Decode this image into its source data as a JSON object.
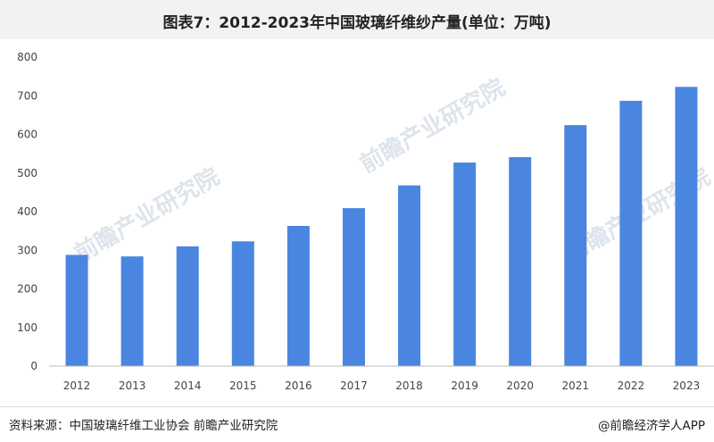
{
  "title": "图表7：2012-2023年中国玻璃纤维纱产量(单位：万吨)",
  "source": "资料来源：中国玻璃纤维工业协会 前瞻产业研究院",
  "brand": "@前瞻经济学人APP",
  "watermark": "前瞻产业研究院",
  "colors": {
    "bar": "#4a86e0",
    "axis": "#bbbbbb",
    "title_bg": "#f2f2f2"
  },
  "chart_data": {
    "type": "bar",
    "title": "图表7：2012-2023年中国玻璃纤维纱产量(单位：万吨)",
    "xlabel": "",
    "ylabel": "",
    "categories": [
      "2012",
      "2013",
      "2014",
      "2015",
      "2016",
      "2017",
      "2018",
      "2019",
      "2020",
      "2021",
      "2022",
      "2023"
    ],
    "values": [
      288,
      284,
      310,
      323,
      363,
      409,
      468,
      527,
      541,
      624,
      687,
      723
    ],
    "ylim": [
      0,
      800
    ],
    "yticks": [
      0,
      100,
      200,
      300,
      400,
      500,
      600,
      700,
      800
    ],
    "grid": false,
    "legend": "none"
  }
}
